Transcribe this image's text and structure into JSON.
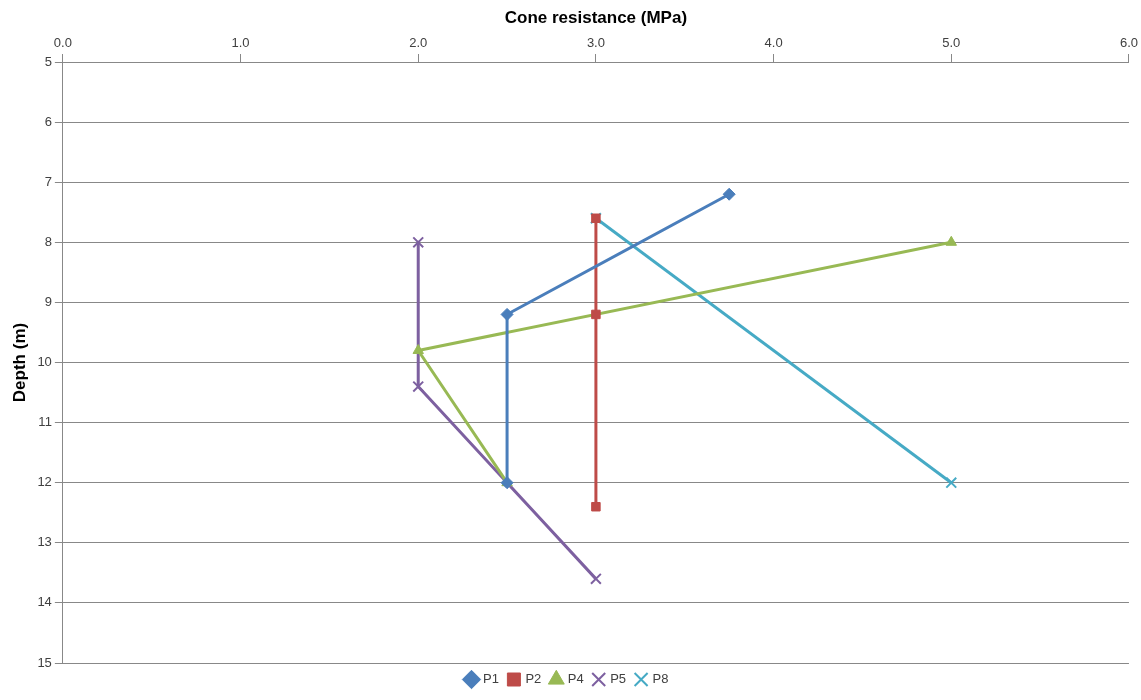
{
  "chart_data": {
    "type": "line",
    "xlabel": "Cone resistance (MPa)",
    "ylabel": "Depth (m)",
    "xlim": [
      0,
      6
    ],
    "xticks": [
      {
        "value": 0,
        "label": "0.0"
      },
      {
        "value": 1,
        "label": "1.0"
      },
      {
        "value": 2,
        "label": "2.0"
      },
      {
        "value": 3,
        "label": "3.0"
      },
      {
        "value": 4,
        "label": "4.0"
      },
      {
        "value": 5,
        "label": "5.0"
      },
      {
        "value": 6,
        "label": "6.0"
      }
    ],
    "ylim": [
      15,
      5
    ],
    "yticks": [
      5,
      6,
      7,
      8,
      9,
      10,
      11,
      12,
      13,
      14,
      15
    ],
    "grid": "y",
    "legend": "bottom",
    "line_style": "solid",
    "series": [
      {
        "name": "P1",
        "color": "#4a7ebb",
        "marker": "diamond",
        "x": [
          3.75,
          2.5,
          2.5
        ],
        "values": [
          7.2,
          9.2,
          12.0
        ]
      },
      {
        "name": "P2",
        "color": "#be4b48",
        "marker": "square",
        "x": [
          3.0,
          3.0,
          3.0
        ],
        "values": [
          7.6,
          9.2,
          12.4
        ]
      },
      {
        "name": "P4",
        "color": "#98b954",
        "marker": "triangle",
        "x": [
          5.0,
          2.0,
          2.5
        ],
        "values": [
          8.0,
          9.8,
          12.0
        ]
      },
      {
        "name": "P5",
        "color": "#7d60a0",
        "marker": "cross",
        "x": [
          2.0,
          2.0,
          3.0
        ],
        "values": [
          8.0,
          10.4,
          13.6
        ]
      },
      {
        "name": "P8",
        "color": "#46aac5",
        "marker": "cross",
        "x": [
          3.0,
          5.0
        ],
        "values": [
          7.6,
          12.0
        ]
      }
    ]
  }
}
